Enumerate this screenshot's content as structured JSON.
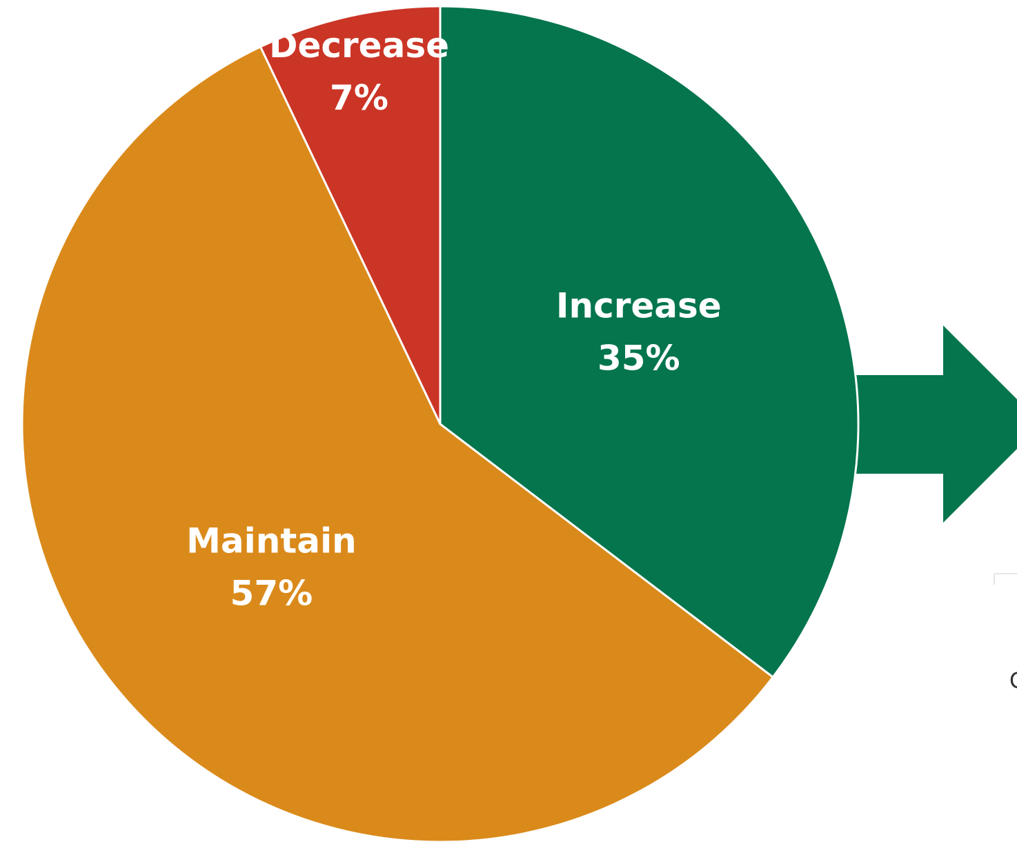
{
  "chart_data": {
    "type": "pie",
    "start_angle": "12 o'clock",
    "direction": "clockwise",
    "slices": [
      {
        "label": "Increase",
        "value": 35,
        "value_text": "35%",
        "color": "#04754D"
      },
      {
        "label": "Maintain",
        "value": 57,
        "value_text": "57%",
        "color": "#DA8A1B"
      },
      {
        "label": "Decrease",
        "value": 7,
        "value_text": "7%",
        "color": "#CB3526"
      }
    ],
    "legend": "none",
    "slice_border_color": "#ffffff"
  },
  "decorations": {
    "arrow": {
      "direction": "right",
      "color": "#04754D",
      "partially_visible": true
    },
    "cut_off_text": "C"
  }
}
